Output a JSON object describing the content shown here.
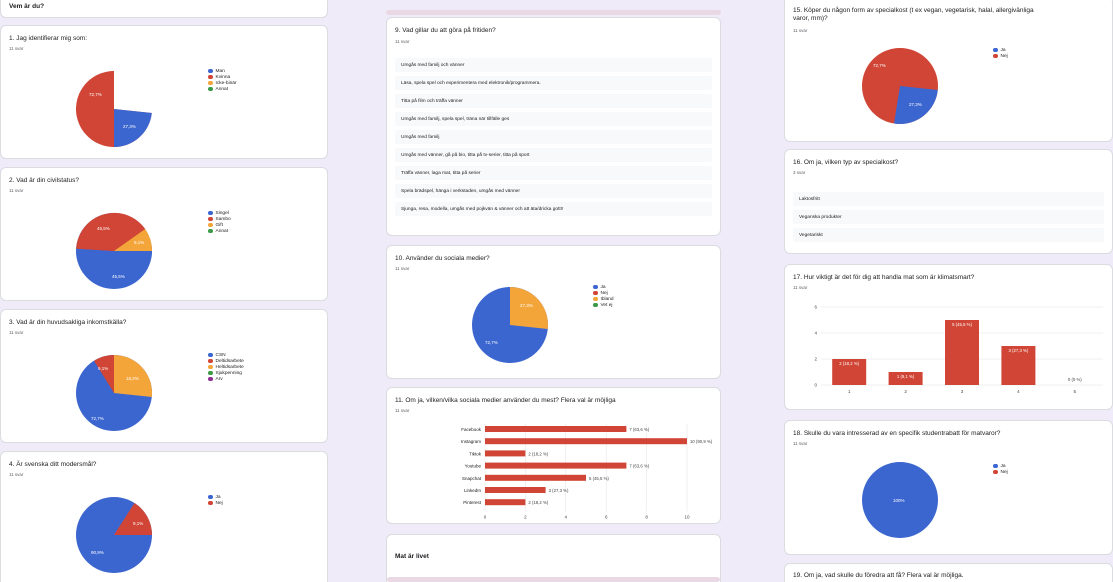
{
  "colors": {
    "blue": "#3c66cf",
    "red": "#d04535",
    "orange": "#f4a53a",
    "green": "#3a9a47",
    "purple": "#8f2f95"
  },
  "section_header": "Vem är du?",
  "section2_header": "Mat är livet",
  "q1": {
    "title": "1. Jag identifierar mig som:",
    "count": "11 svar",
    "legend": [
      "Man",
      "Kvinna",
      "Icke-binär",
      "Annat"
    ],
    "labels": [
      "72,7%",
      "27,3%"
    ]
  },
  "q2": {
    "title": "2. Vad är din civilstatus?",
    "count": "11 svar",
    "legend": [
      "Singel",
      "Sambo",
      "Gift",
      "Annat"
    ],
    "labels": [
      "45,5%",
      "9,1%",
      "45,5%"
    ]
  },
  "q3": {
    "title": "3. Vad är din huvudsakliga inkomstkälla?",
    "count": "11 svar",
    "legend": [
      "CSN",
      "Deltidsarbete",
      "Heltidsarbete",
      "Sjukpenning",
      "Arv"
    ],
    "labels": [
      "9,1%",
      "18,2%",
      "72,7%"
    ]
  },
  "q4": {
    "title": "4. Är svenska ditt modersmål?",
    "count": "11 svar",
    "legend": [
      "Ja",
      "Nej"
    ],
    "labels": [
      "9,1%",
      "90,9%"
    ]
  },
  "q9": {
    "title": "9. Vad gillar du att göra på fritiden?",
    "count": "11 svar",
    "responses": [
      "Umgås med familj och vänner",
      "Läsa, spela spel och experimentera med elektronik/programmera.",
      "Titta på film och träffa vänner",
      "Umgås med familj, spela spel, träna när tillfälle ges",
      "Umgås med familj",
      "Umgås med vänner, gå på bio, titta på tv-serier, titta på sport",
      "Träffa vänner, laga mat, titta på serier",
      "Spela brädspel, hänga i verkstaden, umgås med vänner",
      "Sjunga, resa, modella, umgås med pojkvän & vänner och att äta/dricka gott!!"
    ]
  },
  "q10": {
    "title": "10. Använder du sociala medier?",
    "count": "11 svar",
    "legend": [
      "Ja",
      "Nej",
      "Ibland",
      "Vet ej"
    ],
    "labels": [
      "27,3%",
      "72,7%"
    ]
  },
  "q11": {
    "title": "11. Om ja, vilken/vilka sociala medier använder du mest? Flera val är möjliga",
    "count": "11 svar"
  },
  "q15": {
    "title": "15. Köper du någon form av specialkost (t ex vegan, vegetarisk, halal, allergivänliga varor, mm)?",
    "count": "11 svar",
    "legend": [
      "Ja",
      "Nej"
    ],
    "labels": [
      "72,7%",
      "27,3%"
    ]
  },
  "q16": {
    "title": "16. Om ja, vilken typ av specialkost?",
    "count": "3 svar",
    "responses": [
      "Laktosfritt",
      "Veganska produkter",
      "Vegetariskt"
    ]
  },
  "q17": {
    "title": "17. Hur viktigt är det för dig att handla mat som är klimatsmart?",
    "count": "11 svar"
  },
  "q18": {
    "title": "18. Skulle du vara intresserad av en specifik studentrabatt för matvaror?",
    "count": "11 svar",
    "legend": [
      "Ja",
      "Nej"
    ],
    "labels": [
      "100%"
    ]
  },
  "q19": {
    "title": "19. Om ja, vad skulle du föredra att få? Flera val är möjliga."
  },
  "chart_data": [
    {
      "type": "pie",
      "name": "q1",
      "categories": [
        "Man",
        "Kvinna",
        "Icke-binär",
        "Annat"
      ],
      "values": [
        27.3,
        72.7,
        0,
        0
      ]
    },
    {
      "type": "pie",
      "name": "q2",
      "categories": [
        "Singel",
        "Sambo",
        "Gift",
        "Annat"
      ],
      "values": [
        45.5,
        45.5,
        9.1,
        0
      ]
    },
    {
      "type": "pie",
      "name": "q3",
      "categories": [
        "CSN",
        "Deltidsarbete",
        "Heltidsarbete",
        "Sjukpenning",
        "Arv"
      ],
      "values": [
        72.7,
        9.1,
        18.2,
        0,
        0
      ]
    },
    {
      "type": "pie",
      "name": "q4",
      "categories": [
        "Ja",
        "Nej"
      ],
      "values": [
        90.9,
        9.1
      ]
    },
    {
      "type": "pie",
      "name": "q10",
      "categories": [
        "Ja",
        "Nej",
        "Ibland",
        "Vet ej"
      ],
      "values": [
        72.7,
        0,
        27.3,
        0
      ]
    },
    {
      "type": "bar",
      "name": "q11",
      "orientation": "horizontal",
      "categories": [
        "Facebook",
        "Instagram",
        "Tiktok",
        "Youtube",
        "Snapchat",
        "LinkedIn",
        "Pinterest"
      ],
      "values": [
        7,
        10,
        2,
        7,
        5,
        3,
        2
      ],
      "data_labels": [
        "7 (63,6 %)",
        "10 (90,9 %)",
        "2 (18,2 %)",
        "7 (63,6 %)",
        "5 (45,5 %)",
        "3 (27,3 %)",
        "2 (18,2 %)"
      ],
      "xlim": [
        0,
        10
      ],
      "ticks": [
        "0",
        "2",
        "4",
        "6",
        "8",
        "10"
      ]
    },
    {
      "type": "pie",
      "name": "q15",
      "categories": [
        "Ja",
        "Nej"
      ],
      "values": [
        27.3,
        72.7
      ]
    },
    {
      "type": "bar",
      "name": "q17",
      "categories": [
        "1",
        "2",
        "3",
        "4",
        "5"
      ],
      "values": [
        2,
        1,
        5,
        3,
        0
      ],
      "data_labels": [
        "2 (18,2 %)",
        "1 (9,1 %)",
        "5 (45,5 %)",
        "3 (27,3 %)",
        "0 (0 %)"
      ],
      "ylim": [
        0,
        6
      ],
      "ticks": [
        "0",
        "2",
        "4",
        "6"
      ]
    },
    {
      "type": "pie",
      "name": "q18",
      "categories": [
        "Ja",
        "Nej"
      ],
      "values": [
        100,
        0
      ]
    }
  ]
}
